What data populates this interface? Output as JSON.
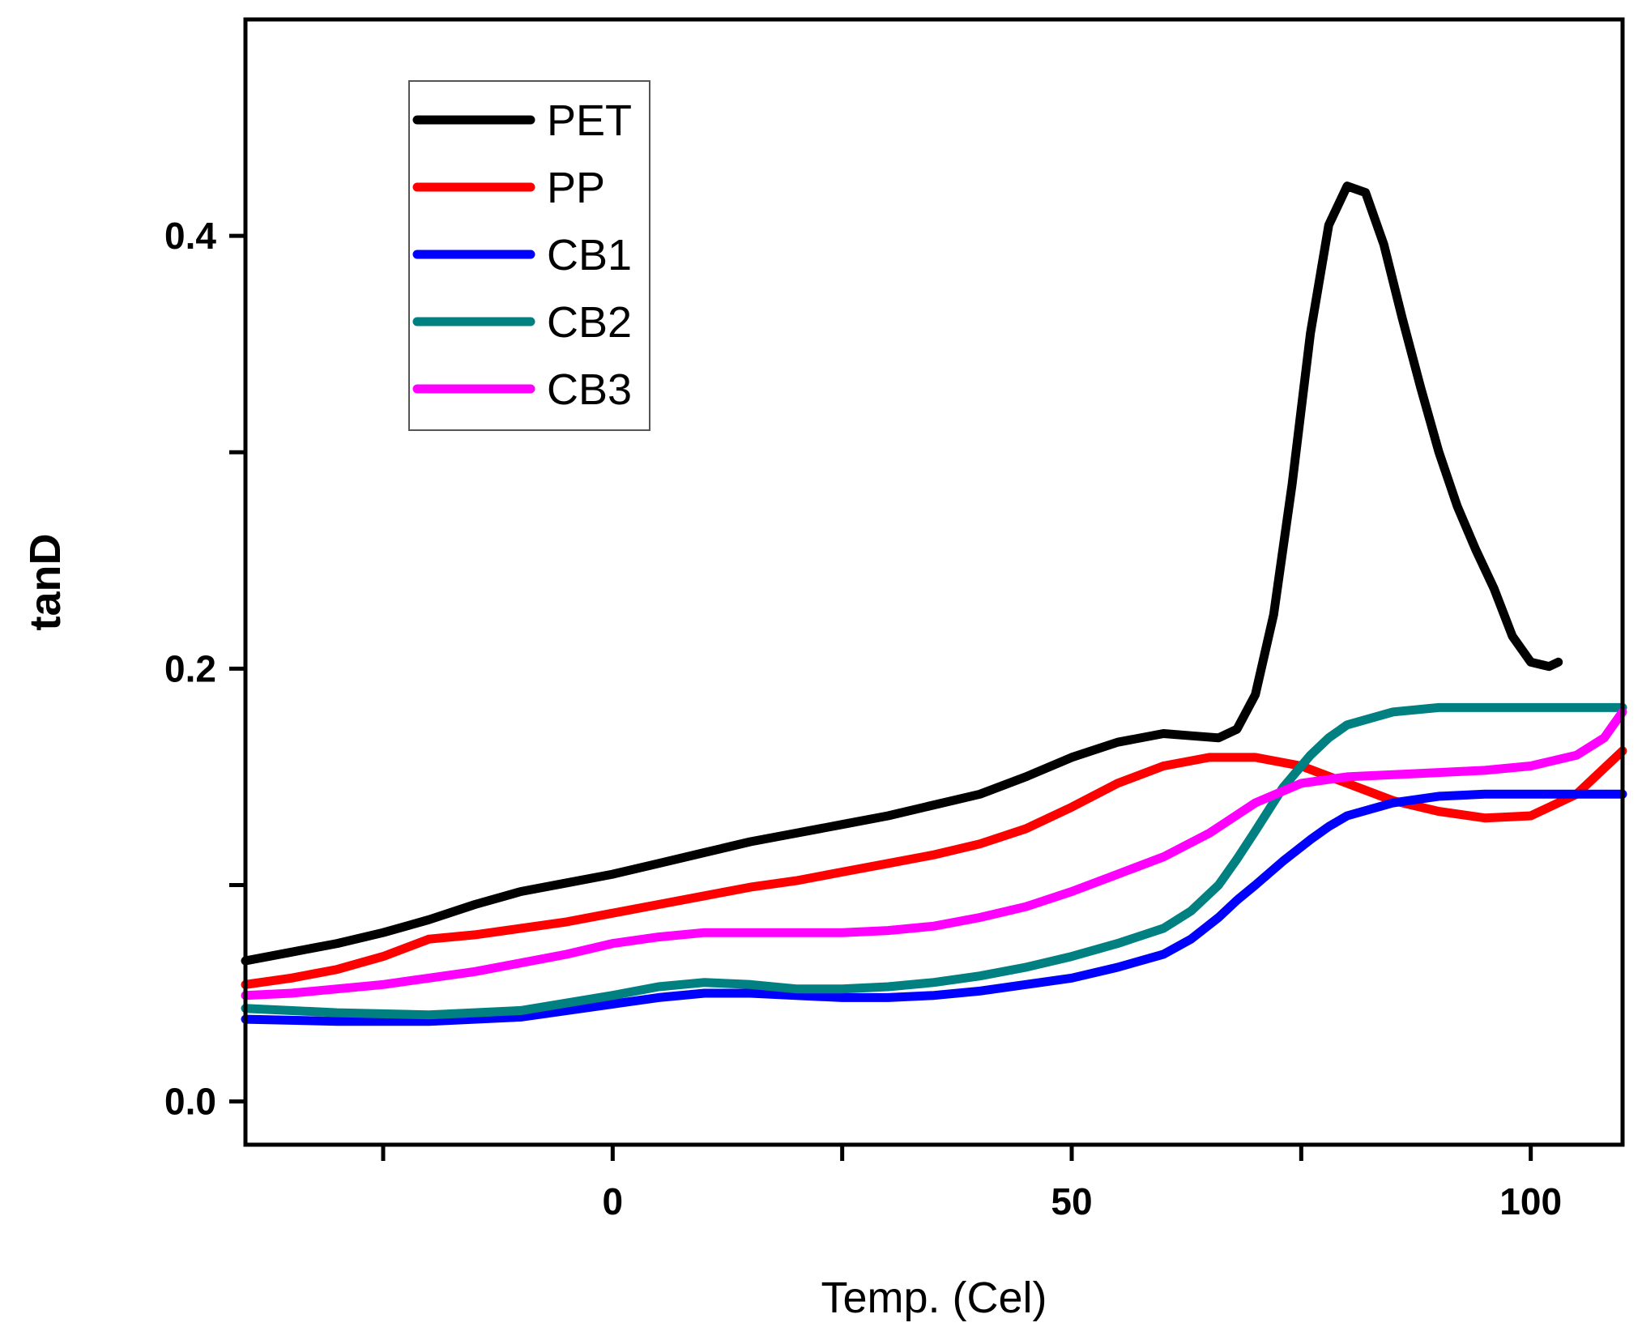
{
  "chart_data": {
    "type": "line",
    "title": "",
    "xlabel": "Temp. (Cel)",
    "ylabel": "tanD",
    "xlim": [
      -40,
      110
    ],
    "ylim": [
      -0.02,
      0.5
    ],
    "xticks": [
      -25,
      0,
      25,
      50,
      75,
      100
    ],
    "xtick_labels": [
      "",
      "0",
      "",
      "50",
      "",
      "100"
    ],
    "yticks": [
      0.0,
      0.1,
      0.2,
      0.3,
      0.4
    ],
    "ytick_labels": [
      "0.0",
      "",
      "0.2",
      "",
      "0.4"
    ],
    "grid": false,
    "legend_position": "top-left",
    "series": [
      {
        "name": "PET",
        "color": "#000000",
        "x": [
          -40,
          -35,
          -30,
          -25,
          -20,
          -15,
          -10,
          -5,
          0,
          5,
          10,
          15,
          20,
          25,
          30,
          35,
          40,
          45,
          50,
          55,
          60,
          63,
          66,
          68,
          70,
          72,
          74,
          76,
          78,
          80,
          82,
          84,
          86,
          88,
          90,
          92,
          94,
          96,
          98,
          100,
          102,
          103
        ],
        "values": [
          0.065,
          0.069,
          0.073,
          0.078,
          0.084,
          0.091,
          0.097,
          0.101,
          0.105,
          0.11,
          0.115,
          0.12,
          0.124,
          0.128,
          0.132,
          0.137,
          0.142,
          0.15,
          0.159,
          0.166,
          0.17,
          0.169,
          0.168,
          0.172,
          0.188,
          0.225,
          0.285,
          0.355,
          0.405,
          0.423,
          0.42,
          0.396,
          0.362,
          0.33,
          0.3,
          0.275,
          0.255,
          0.237,
          0.215,
          0.203,
          0.201,
          0.203
        ]
      },
      {
        "name": "PP",
        "color": "#ff0000",
        "x": [
          -40,
          -35,
          -30,
          -25,
          -20,
          -15,
          -10,
          -5,
          0,
          5,
          10,
          15,
          20,
          25,
          30,
          35,
          40,
          45,
          50,
          55,
          60,
          65,
          70,
          75,
          80,
          85,
          90,
          95,
          100,
          105,
          110
        ],
        "values": [
          0.054,
          0.057,
          0.061,
          0.067,
          0.075,
          0.077,
          0.08,
          0.083,
          0.087,
          0.091,
          0.095,
          0.099,
          0.102,
          0.106,
          0.11,
          0.114,
          0.119,
          0.126,
          0.136,
          0.147,
          0.155,
          0.159,
          0.159,
          0.155,
          0.147,
          0.139,
          0.134,
          0.131,
          0.132,
          0.142,
          0.162
        ]
      },
      {
        "name": "CB1",
        "color": "#0000ff",
        "x": [
          -40,
          -30,
          -20,
          -10,
          0,
          5,
          10,
          15,
          20,
          25,
          30,
          35,
          40,
          45,
          50,
          55,
          60,
          63,
          66,
          68,
          70,
          73,
          76,
          78,
          80,
          85,
          90,
          95,
          100,
          105,
          110
        ],
        "values": [
          0.038,
          0.037,
          0.037,
          0.039,
          0.045,
          0.048,
          0.05,
          0.05,
          0.049,
          0.048,
          0.048,
          0.049,
          0.051,
          0.054,
          0.057,
          0.062,
          0.068,
          0.075,
          0.085,
          0.093,
          0.1,
          0.111,
          0.121,
          0.127,
          0.132,
          0.138,
          0.141,
          0.142,
          0.142,
          0.142,
          0.142
        ]
      },
      {
        "name": "CB2",
        "color": "#008080",
        "x": [
          -40,
          -30,
          -20,
          -10,
          0,
          5,
          10,
          15,
          20,
          25,
          30,
          35,
          40,
          45,
          50,
          55,
          60,
          63,
          66,
          68,
          70,
          73,
          76,
          78,
          80,
          85,
          90,
          95,
          100,
          105,
          110
        ],
        "values": [
          0.043,
          0.041,
          0.04,
          0.042,
          0.049,
          0.053,
          0.055,
          0.054,
          0.052,
          0.052,
          0.053,
          0.055,
          0.058,
          0.062,
          0.067,
          0.073,
          0.08,
          0.088,
          0.1,
          0.112,
          0.125,
          0.145,
          0.16,
          0.168,
          0.174,
          0.18,
          0.182,
          0.182,
          0.182,
          0.182,
          0.182
        ]
      },
      {
        "name": "CB3",
        "color": "#ff00ff",
        "x": [
          -40,
          -35,
          -30,
          -25,
          -20,
          -15,
          -10,
          -5,
          0,
          5,
          10,
          15,
          20,
          25,
          30,
          35,
          40,
          45,
          50,
          55,
          60,
          65,
          70,
          75,
          80,
          85,
          90,
          95,
          100,
          105,
          108,
          110
        ],
        "values": [
          0.049,
          0.05,
          0.052,
          0.054,
          0.057,
          0.06,
          0.064,
          0.068,
          0.073,
          0.076,
          0.078,
          0.078,
          0.078,
          0.078,
          0.079,
          0.081,
          0.085,
          0.09,
          0.097,
          0.105,
          0.113,
          0.124,
          0.138,
          0.147,
          0.15,
          0.151,
          0.152,
          0.153,
          0.155,
          0.16,
          0.168,
          0.18
        ]
      }
    ]
  }
}
